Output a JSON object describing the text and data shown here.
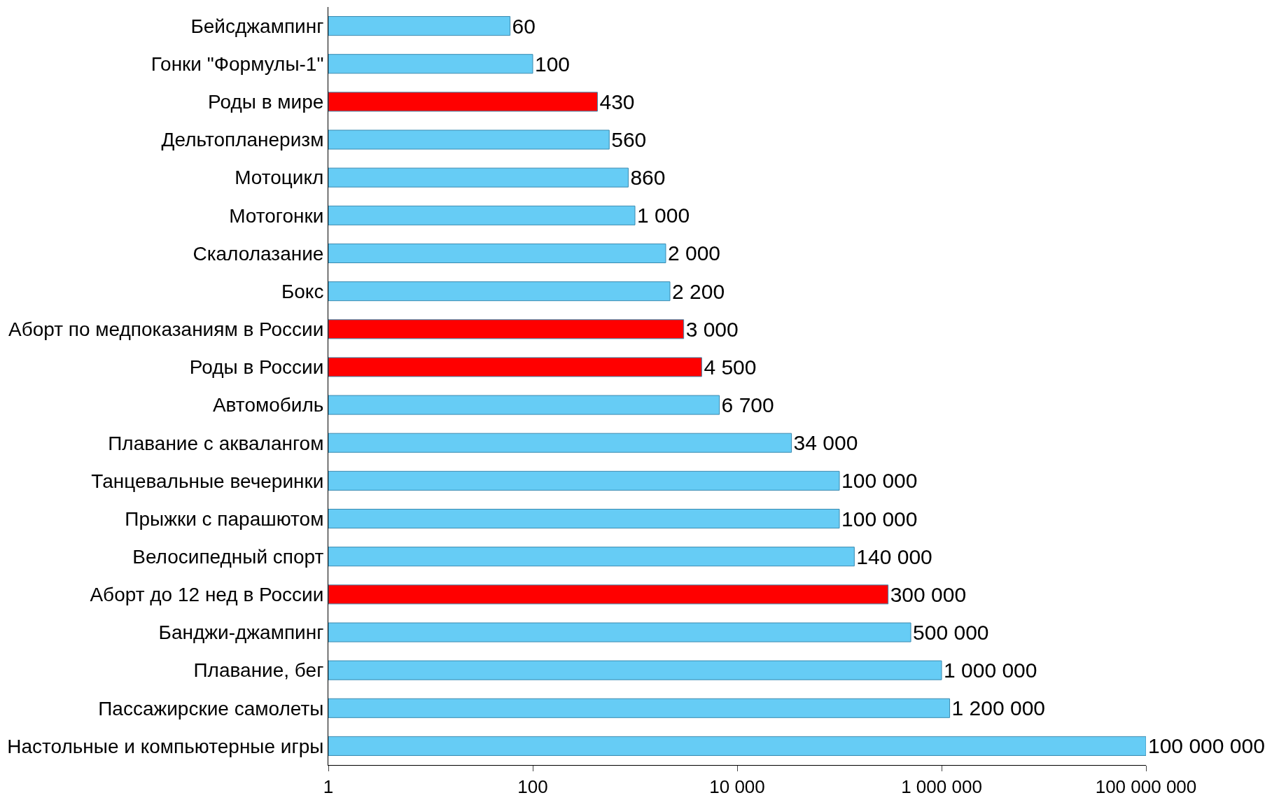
{
  "chart_data": {
    "type": "bar",
    "orientation": "horizontal",
    "log": "x",
    "categories": [
      "Бейсджампинг",
      "Гонки \"Формулы-1\"",
      "Роды в мире",
      "Дельтопланеризм",
      "Мотоцикл",
      "Мотогонки",
      "Скалолазание",
      "Бокс",
      "Аборт по медпоказаниям в России",
      "Роды в России",
      "Автомобиль",
      "Плавание с аквалангом",
      "Танцевальные вечеринки",
      "Прыжки с парашютом",
      "Велосипедный спорт",
      "Аборт до 12 нед в России",
      "Банджи-джампинг",
      "Плавание, бег",
      "Пассажирские самолеты",
      "Настольные и компьютерные игры"
    ],
    "values": [
      60,
      100,
      430,
      560,
      860,
      1000,
      2000,
      2200,
      3000,
      4500,
      6700,
      34000,
      100000,
      100000,
      140000,
      300000,
      500000,
      1000000,
      1200000,
      100000000
    ],
    "value_labels": [
      "60",
      "100",
      "430",
      "560",
      "860",
      "1 000",
      "2 000",
      "2 200",
      "3 000",
      "4 500",
      "6 700",
      "34 000",
      "100 000",
      "100 000",
      "140 000",
      "300 000",
      "500 000",
      "1 000 000",
      "1 200 000",
      "100 000 000"
    ],
    "colors": [
      "#66ccf5",
      "#66ccf5",
      "#ff0000",
      "#66ccf5",
      "#66ccf5",
      "#66ccf5",
      "#66ccf5",
      "#66ccf5",
      "#ff0000",
      "#ff0000",
      "#66ccf5",
      "#66ccf5",
      "#66ccf5",
      "#66ccf5",
      "#66ccf5",
      "#ff0000",
      "#66ccf5",
      "#66ccf5",
      "#66ccf5",
      "#66ccf5"
    ],
    "xlim": [
      1,
      100000000
    ],
    "xticks": [
      1,
      100,
      {
        "value": 10000,
        "label": "10 000"
      },
      {
        "value": 1000000,
        "label": "1 000 000"
      },
      {
        "value": 100000000,
        "label": "100 000 000"
      }
    ],
    "legend": false
  }
}
